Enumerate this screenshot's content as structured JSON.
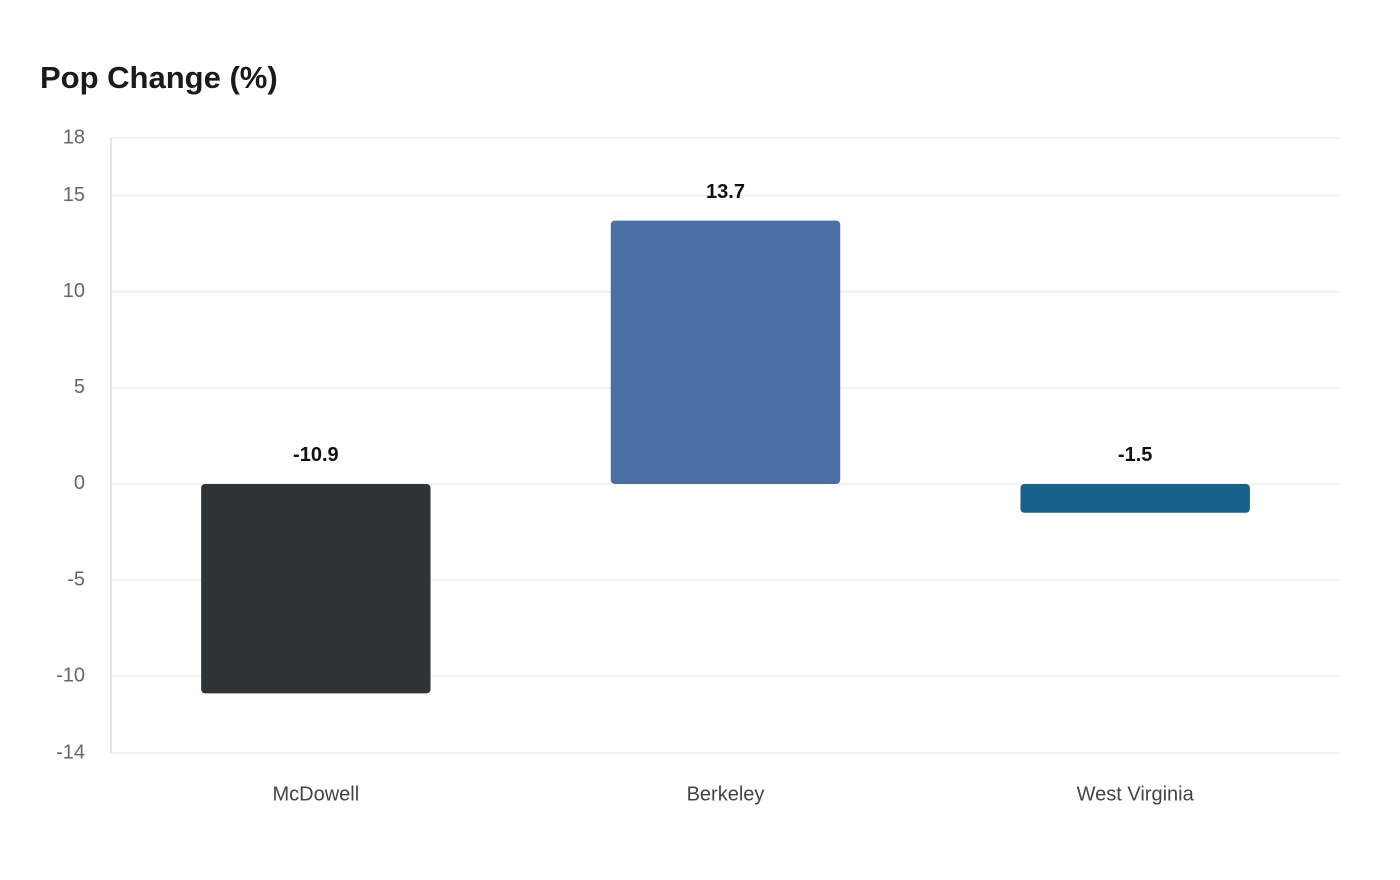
{
  "chart_data": {
    "type": "bar",
    "title": "Pop Change (%)",
    "categories": [
      "McDowell",
      "Berkeley",
      "West Virginia"
    ],
    "values": [
      -10.9,
      13.7,
      -1.5
    ],
    "colors": [
      "#2e3436",
      "#4a6fa5",
      "#17608a"
    ],
    "ylim": [
      -14,
      18
    ],
    "yticks": [
      -14,
      -10,
      -5,
      0,
      5,
      10,
      15,
      18
    ],
    "grid": true
  }
}
